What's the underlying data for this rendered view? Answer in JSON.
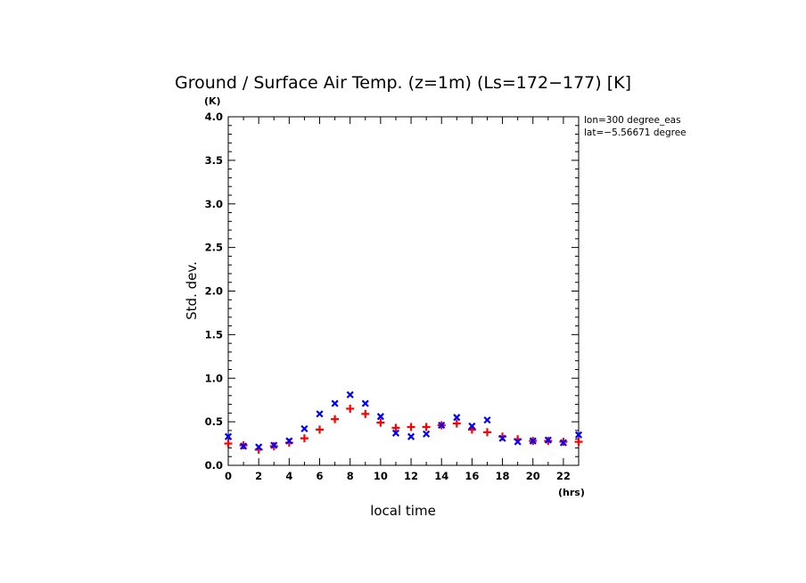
{
  "chart_data": {
    "type": "scatter",
    "title": "Ground / Surface Air Temp. (z=1m) (Ls=172−177) [K]",
    "xlabel": "local time",
    "ylabel": "Std. dev.",
    "x_unit": "(hrs)",
    "y_unit": "(K)",
    "xlim": [
      0,
      23
    ],
    "ylim": [
      0,
      4
    ],
    "x_ticks": [
      0,
      2,
      4,
      6,
      8,
      10,
      12,
      14,
      16,
      18,
      20,
      22
    ],
    "x_tick_labels": [
      "0",
      "2",
      "4",
      "6",
      "8",
      "10",
      "12",
      "14",
      "16",
      "18",
      "20",
      "22"
    ],
    "y_ticks": [
      0,
      0.5,
      1,
      1.5,
      2,
      2.5,
      3,
      3.5,
      4
    ],
    "y_tick_labels": [
      "0.0",
      "0.5",
      "1.0",
      "1.5",
      "2.0",
      "2.5",
      "3.0",
      "3.5",
      "4.0"
    ],
    "annotations": [
      "lon=300 degree_eas",
      "lat=−5.56671 degree"
    ],
    "grid": false,
    "series": [
      {
        "marker": "plus",
        "color": "#ff0000",
        "x": [
          0,
          1,
          2,
          3,
          4,
          5,
          6,
          7,
          8,
          9,
          10,
          11,
          12,
          13,
          14,
          15,
          16,
          17,
          18,
          19,
          20,
          21,
          22,
          23
        ],
        "values": [
          0.25,
          0.23,
          0.18,
          0.22,
          0.26,
          0.31,
          0.41,
          0.53,
          0.65,
          0.59,
          0.49,
          0.43,
          0.44,
          0.44,
          0.46,
          0.48,
          0.41,
          0.38,
          0.33,
          0.3,
          0.28,
          0.28,
          0.27,
          0.27
        ]
      },
      {
        "marker": "cross",
        "color": "#0000ff",
        "x": [
          0,
          1,
          2,
          3,
          4,
          5,
          6,
          7,
          8,
          9,
          10,
          11,
          12,
          13,
          14,
          15,
          16,
          17,
          18,
          19,
          20,
          21,
          22,
          23
        ],
        "values": [
          0.33,
          0.22,
          0.21,
          0.23,
          0.28,
          0.42,
          0.59,
          0.71,
          0.81,
          0.71,
          0.56,
          0.37,
          0.33,
          0.36,
          0.46,
          0.55,
          0.45,
          0.52,
          0.31,
          0.27,
          0.28,
          0.29,
          0.26,
          0.35
        ]
      }
    ]
  }
}
